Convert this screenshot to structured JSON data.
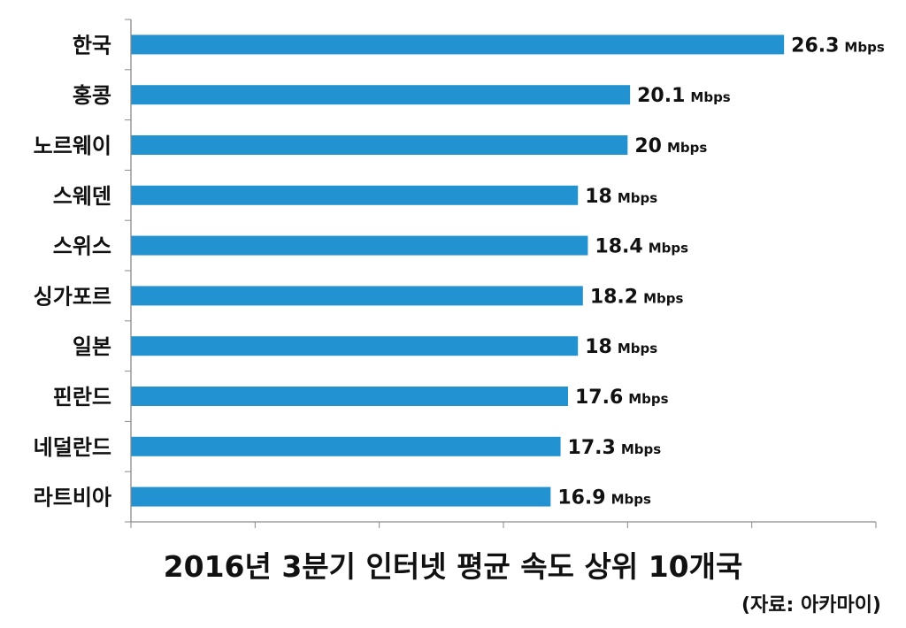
{
  "chart_data": {
    "type": "bar",
    "orientation": "horizontal",
    "title": "2016년 3분기 인터넷 평균 속도 상위 10개국",
    "source": "(자료: 아카마이)",
    "categories": [
      "한국",
      "홍콩",
      "노르웨이",
      "스웨덴",
      "스위스",
      "싱가포르",
      "일본",
      "핀란드",
      "네덜란드",
      "라트비아"
    ],
    "values": [
      26.3,
      20.1,
      20,
      18,
      18.4,
      18.2,
      18,
      17.6,
      17.3,
      16.9
    ],
    "value_labels": [
      "26.3",
      "20.1",
      "20",
      "18",
      "18.4",
      "18.2",
      "18",
      "17.6",
      "17.3",
      "16.9"
    ],
    "unit": "Mbps",
    "bar_color": "#2292d0",
    "xlim": [
      0,
      30
    ],
    "grid": false,
    "xlabel": "",
    "ylabel": ""
  }
}
